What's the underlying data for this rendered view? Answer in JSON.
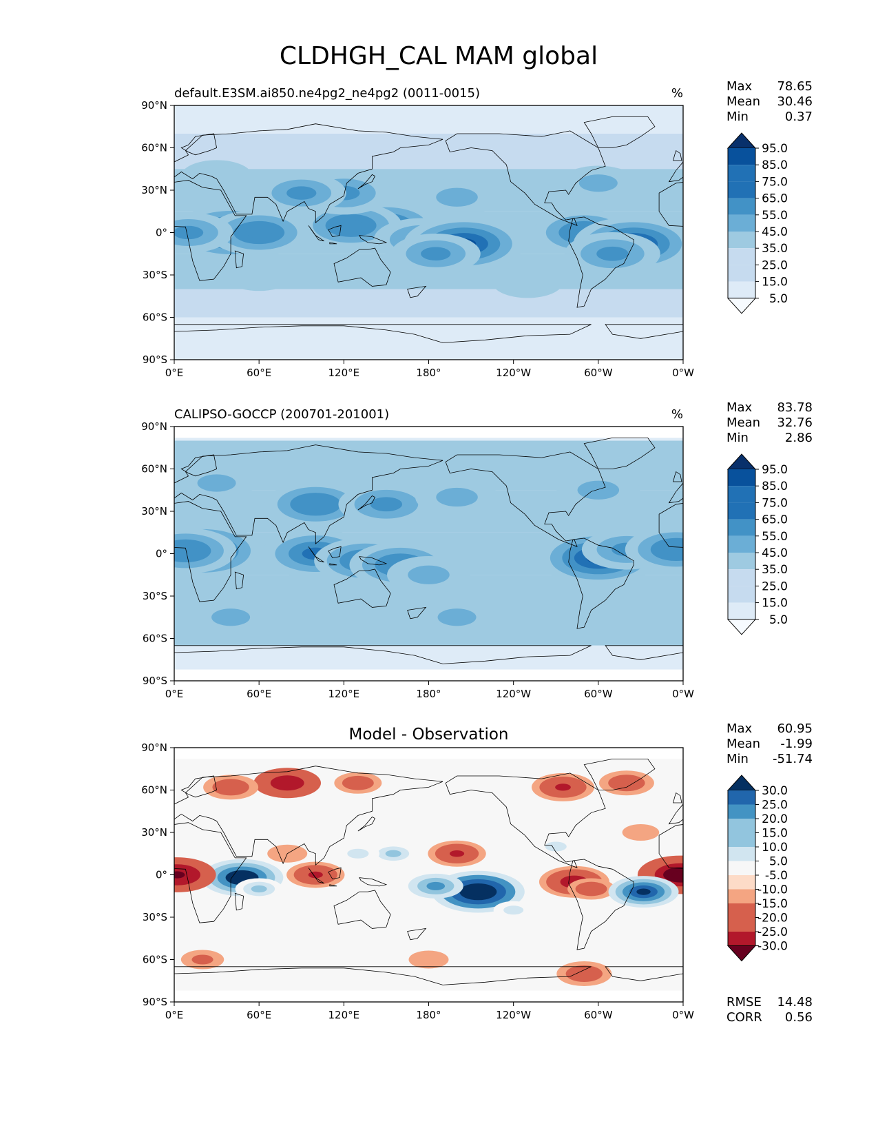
{
  "title": "CLDHGH_CAL MAM global",
  "colors": {
    "blues": [
      "#f7fbff",
      "#deebf7",
      "#c6dbef",
      "#9ecae1",
      "#6baed6",
      "#4292c6",
      "#2171b5",
      "#08519c",
      "#08306b"
    ],
    "diverging": [
      "#67001f",
      "#b2182b",
      "#d6604d",
      "#f4a582",
      "#fddbc7",
      "#f7f7f7",
      "#d1e5f0",
      "#92c5de",
      "#4393c3",
      "#2166ac",
      "#053061"
    ],
    "land": "#000000"
  },
  "chart_data": [
    {
      "type": "heatmap",
      "panel": "model",
      "title": "default.E3SM.ai850.ne4pg2_ne4pg2 (0011-0015)",
      "units": "%",
      "stats": {
        "max_label": "Max",
        "max": "78.65",
        "mean_label": "Mean",
        "mean": "30.46",
        "min_label": "Min",
        "min": "0.37"
      },
      "x_ticks": [
        "0°E",
        "60°E",
        "120°E",
        "180°",
        "120°W",
        "60°W",
        "0°W"
      ],
      "y_ticks": [
        "90°N",
        "60°N",
        "30°N",
        "0°",
        "30°S",
        "60°S",
        "90°S"
      ],
      "xlim": [
        0,
        360
      ],
      "ylim": [
        -90,
        90
      ],
      "colorbar_levels": [
        "95.0",
        "85.0",
        "75.0",
        "65.0",
        "55.0",
        "45.0",
        "35.0",
        "25.0",
        "15.0",
        "5.0"
      ],
      "features": [
        {
          "lon": 40,
          "lat": 0,
          "value": 75
        },
        {
          "lon": 60,
          "lat": 0,
          "value": 60
        },
        {
          "lon": 10,
          "lat": 0,
          "value": 50
        },
        {
          "lon": 150,
          "lat": 5,
          "value": 65
        },
        {
          "lon": 125,
          "lat": 5,
          "value": 60
        },
        {
          "lon": 175,
          "lat": -5,
          "value": 55
        },
        {
          "lon": 205,
          "lat": -8,
          "value": 75
        },
        {
          "lon": 185,
          "lat": -15,
          "value": 50
        },
        {
          "lon": 290,
          "lat": 0,
          "value": 60
        },
        {
          "lon": 325,
          "lat": -8,
          "value": 75
        },
        {
          "lon": 310,
          "lat": -15,
          "value": 55
        },
        {
          "lon": 120,
          "lat": 28,
          "value": 55
        },
        {
          "lon": 90,
          "lat": 28,
          "value": 50
        },
        {
          "lon": 200,
          "lat": 25,
          "value": 45
        },
        {
          "lon": 300,
          "lat": 35,
          "value": 40
        },
        {
          "lon": 60,
          "lat": -30,
          "value": 35
        },
        {
          "lon": 250,
          "lat": -35,
          "value": 35
        },
        {
          "lon": 30,
          "lat": 40,
          "value": 35
        }
      ]
    },
    {
      "type": "heatmap",
      "panel": "observation",
      "title": "CALIPSO-GOCCP (200701-201001)",
      "units": "%",
      "stats": {
        "max_label": "Max",
        "max": "83.78",
        "mean_label": "Mean",
        "mean": "32.76",
        "min_label": "Min",
        "min": "2.86"
      },
      "x_ticks": [
        "0°E",
        "60°E",
        "120°E",
        "180°",
        "120°W",
        "60°W",
        "0°W"
      ],
      "y_ticks": [
        "90°N",
        "60°N",
        "30°N",
        "0°",
        "30°S",
        "60°S",
        "90°S"
      ],
      "xlim": [
        0,
        360
      ],
      "ylim": [
        -90,
        90
      ],
      "data_lat_range": [
        -82,
        82
      ],
      "colorbar_levels": [
        "95.0",
        "85.0",
        "75.0",
        "65.0",
        "55.0",
        "45.0",
        "35.0",
        "25.0",
        "15.0",
        "5.0"
      ],
      "features": [
        {
          "lon": 20,
          "lat": 2,
          "value": 75
        },
        {
          "lon": 8,
          "lat": 2,
          "value": 60
        },
        {
          "lon": 100,
          "lat": 0,
          "value": 65
        },
        {
          "lon": 135,
          "lat": -5,
          "value": 60
        },
        {
          "lon": 160,
          "lat": -8,
          "value": 60
        },
        {
          "lon": 180,
          "lat": -15,
          "value": 45
        },
        {
          "lon": 300,
          "lat": -3,
          "value": 75
        },
        {
          "lon": 320,
          "lat": 3,
          "value": 50
        },
        {
          "lon": 355,
          "lat": 3,
          "value": 60
        },
        {
          "lon": 100,
          "lat": 35,
          "value": 60
        },
        {
          "lon": 150,
          "lat": 35,
          "value": 55
        },
        {
          "lon": 200,
          "lat": 40,
          "value": 45
        },
        {
          "lon": 300,
          "lat": 45,
          "value": 45
        },
        {
          "lon": 30,
          "lat": 50,
          "value": 40
        },
        {
          "lon": 200,
          "lat": -45,
          "value": 40
        },
        {
          "lon": 40,
          "lat": -45,
          "value": 40
        }
      ]
    },
    {
      "type": "heatmap",
      "panel": "difference",
      "title": "Model - Observation",
      "units": "",
      "stats": {
        "max_label": "Max",
        "max": "60.95",
        "mean_label": "Mean",
        "mean": "-1.99",
        "min_label": "Min",
        "min": "-51.74"
      },
      "metrics": {
        "rmse_label": "RMSE",
        "rmse": "14.48",
        "corr_label": "CORR",
        "corr": "0.56"
      },
      "x_ticks": [
        "0°E",
        "60°E",
        "120°E",
        "180°",
        "120°W",
        "60°W",
        "0°W"
      ],
      "y_ticks": [
        "90°N",
        "60°N",
        "30°N",
        "0°",
        "30°S",
        "60°S",
        "90°S"
      ],
      "xlim": [
        0,
        360
      ],
      "ylim": [
        -90,
        90
      ],
      "data_lat_range": [
        -82,
        82
      ],
      "colorbar_levels": [
        "30.0",
        "25.0",
        "20.0",
        "15.0",
        "10.0",
        "5.0",
        "-5.0",
        "-10.0",
        "-15.0",
        "-20.0",
        "-25.0",
        "-30.0"
      ],
      "features": [
        {
          "lon": 80,
          "lat": 65,
          "value": -28
        },
        {
          "lon": 40,
          "lat": 62,
          "value": -20
        },
        {
          "lon": 130,
          "lat": 65,
          "value": -15
        },
        {
          "lon": 275,
          "lat": 62,
          "value": -25
        },
        {
          "lon": 320,
          "lat": 65,
          "value": -20
        },
        {
          "lon": 48,
          "lat": -2,
          "value": 38
        },
        {
          "lon": 60,
          "lat": -10,
          "value": 15
        },
        {
          "lon": 2,
          "lat": 0,
          "value": -35
        },
        {
          "lon": 358,
          "lat": 0,
          "value": -40
        },
        {
          "lon": 100,
          "lat": 0,
          "value": -22
        },
        {
          "lon": 155,
          "lat": 15,
          "value": 15
        },
        {
          "lon": 130,
          "lat": 15,
          "value": 12
        },
        {
          "lon": 200,
          "lat": 15,
          "value": -22
        },
        {
          "lon": 215,
          "lat": -12,
          "value": 45
        },
        {
          "lon": 185,
          "lat": -8,
          "value": 20
        },
        {
          "lon": 240,
          "lat": -25,
          "value": 10
        },
        {
          "lon": 283,
          "lat": -5,
          "value": -30
        },
        {
          "lon": 295,
          "lat": -10,
          "value": -15
        },
        {
          "lon": 332,
          "lat": -12,
          "value": 30
        },
        {
          "lon": 270,
          "lat": 20,
          "value": 12
        },
        {
          "lon": 290,
          "lat": -70,
          "value": -20
        },
        {
          "lon": 180,
          "lat": -60,
          "value": -10
        },
        {
          "lon": 20,
          "lat": -60,
          "value": -12
        },
        {
          "lon": 160,
          "lat": -40,
          "value": 8
        },
        {
          "lon": 60,
          "lat": -30,
          "value": 8
        },
        {
          "lon": 80,
          "lat": 15,
          "value": -10
        },
        {
          "lon": 330,
          "lat": 30,
          "value": -8
        }
      ]
    }
  ]
}
